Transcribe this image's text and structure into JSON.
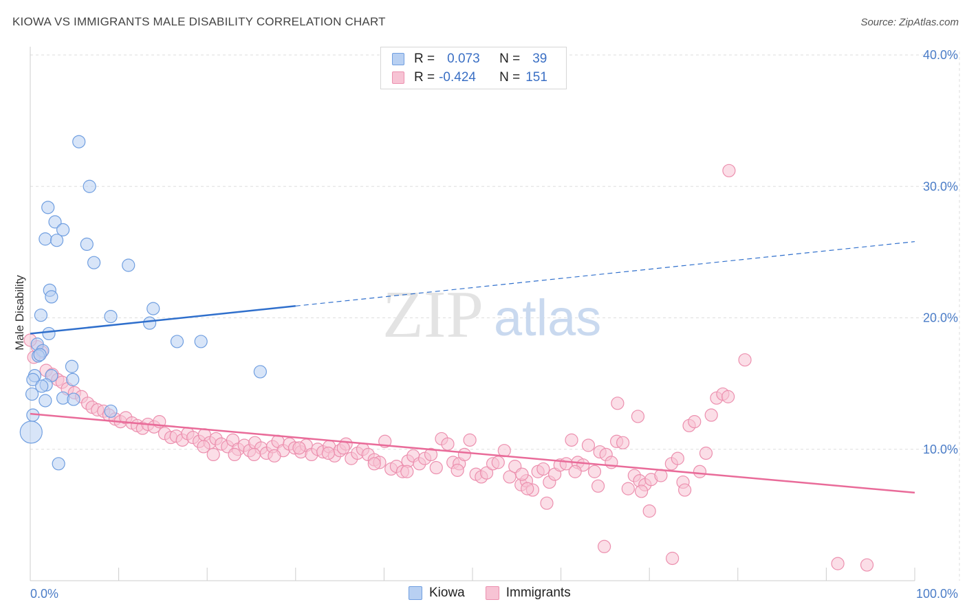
{
  "header": {
    "title": "KIOWA VS IMMIGRANTS MALE DISABILITY CORRELATION CHART",
    "source": "Source: ZipAtlas.com"
  },
  "watermark": {
    "zip": "ZIP",
    "atlas": "atlas"
  },
  "legend": {
    "rows": [
      {
        "r_label": "R =",
        "r_value": "0.073",
        "n_label": "N =",
        "n_value": "39"
      },
      {
        "r_label": "R =",
        "r_value": "-0.424",
        "n_label": "N =",
        "n_value": "151"
      }
    ],
    "series": [
      "Kiowa",
      "Immigrants"
    ]
  },
  "colors": {
    "kiowa_fill": "#b8d0f2",
    "kiowa_stroke": "#6f9ee0",
    "kiowa_line": "#2f6fcc",
    "imm_fill": "#f7c3d4",
    "imm_stroke": "#ec8fae",
    "imm_line": "#e96b99",
    "axis_text": "#4a7cc7",
    "grid": "#dddddd"
  },
  "chart_data": {
    "type": "scatter",
    "title": "KIOWA VS IMMIGRANTS MALE DISABILITY CORRELATION CHART",
    "xlabel": "",
    "ylabel": "Male Disability",
    "xlim": [
      0,
      100
    ],
    "ylim": [
      0,
      40
    ],
    "x_tick_labels": [
      "0.0%",
      "100.0%"
    ],
    "y_ticks": [
      10,
      20,
      30,
      40
    ],
    "y_tick_labels": [
      "10.0%",
      "20.0%",
      "30.0%",
      "40.0%"
    ],
    "grid": true,
    "series": [
      {
        "name": "Kiowa",
        "r": 0.073,
        "n": 39,
        "trend": {
          "x0": 0,
          "y0": 18.8,
          "x1": 30,
          "y1": 20.9,
          "dash_to_x": 100,
          "dash_to_y": 25.8
        },
        "points": [
          [
            5.5,
            33.4
          ],
          [
            6.7,
            30.0
          ],
          [
            2.0,
            28.4
          ],
          [
            2.8,
            27.3
          ],
          [
            3.7,
            26.7
          ],
          [
            1.7,
            26.0
          ],
          [
            3.0,
            25.9
          ],
          [
            6.4,
            25.6
          ],
          [
            7.2,
            24.2
          ],
          [
            11.1,
            24.0
          ],
          [
            2.2,
            22.1
          ],
          [
            2.4,
            21.6
          ],
          [
            13.9,
            20.7
          ],
          [
            1.2,
            20.2
          ],
          [
            9.1,
            20.1
          ],
          [
            13.5,
            19.6
          ],
          [
            2.1,
            18.8
          ],
          [
            0.8,
            18.0
          ],
          [
            16.6,
            18.2
          ],
          [
            19.3,
            18.2
          ],
          [
            1.4,
            17.5
          ],
          [
            0.9,
            17.1
          ],
          [
            1.1,
            17.2
          ],
          [
            4.7,
            16.3
          ],
          [
            26.0,
            15.9
          ],
          [
            0.5,
            15.6
          ],
          [
            2.4,
            15.6
          ],
          [
            0.3,
            15.3
          ],
          [
            4.8,
            15.3
          ],
          [
            1.8,
            14.9
          ],
          [
            1.3,
            14.8
          ],
          [
            0.2,
            14.2
          ],
          [
            1.7,
            13.7
          ],
          [
            3.7,
            13.9
          ],
          [
            4.9,
            13.8
          ],
          [
            9.1,
            12.9
          ],
          [
            0.1,
            11.3
          ],
          [
            3.2,
            8.9
          ],
          [
            0.3,
            12.6
          ]
        ]
      },
      {
        "name": "Immigrants",
        "r": -0.424,
        "n": 151,
        "trend": {
          "x0": 0,
          "y0": 12.7,
          "x1": 100,
          "y1": 6.7
        },
        "points": [
          [
            79.0,
            31.2
          ],
          [
            80.8,
            16.8
          ],
          [
            0.8,
            17.8
          ],
          [
            1.3,
            17.4
          ],
          [
            1.8,
            16.0
          ],
          [
            2.5,
            15.7
          ],
          [
            3.1,
            15.3
          ],
          [
            3.6,
            15.1
          ],
          [
            4.2,
            14.6
          ],
          [
            5.0,
            14.3
          ],
          [
            5.8,
            14.0
          ],
          [
            6.5,
            13.5
          ],
          [
            7.0,
            13.2
          ],
          [
            7.6,
            13.0
          ],
          [
            8.3,
            12.9
          ],
          [
            8.9,
            12.6
          ],
          [
            9.6,
            12.3
          ],
          [
            10.2,
            12.1
          ],
          [
            10.8,
            12.4
          ],
          [
            11.5,
            12.0
          ],
          [
            12.1,
            11.8
          ],
          [
            12.7,
            11.6
          ],
          [
            13.3,
            11.9
          ],
          [
            14.0,
            11.7
          ],
          [
            14.6,
            12.1
          ],
          [
            15.2,
            11.2
          ],
          [
            15.9,
            10.9
          ],
          [
            16.5,
            11.0
          ],
          [
            17.2,
            10.7
          ],
          [
            17.8,
            11.2
          ],
          [
            18.4,
            10.9
          ],
          [
            19.1,
            10.6
          ],
          [
            19.7,
            11.1
          ],
          [
            20.3,
            10.5
          ],
          [
            21.0,
            10.8
          ],
          [
            21.6,
            10.4
          ],
          [
            22.3,
            10.2
          ],
          [
            22.9,
            10.7
          ],
          [
            23.5,
            10.0
          ],
          [
            24.2,
            10.3
          ],
          [
            24.8,
            9.9
          ],
          [
            25.4,
            10.5
          ],
          [
            26.1,
            10.1
          ],
          [
            26.7,
            9.7
          ],
          [
            27.4,
            10.2
          ],
          [
            28.0,
            10.6
          ],
          [
            28.6,
            9.9
          ],
          [
            29.3,
            10.4
          ],
          [
            29.9,
            10.1
          ],
          [
            30.6,
            9.8
          ],
          [
            31.2,
            10.3
          ],
          [
            31.8,
            9.6
          ],
          [
            32.5,
            10.0
          ],
          [
            33.1,
            9.8
          ],
          [
            33.8,
            10.2
          ],
          [
            34.4,
            9.5
          ],
          [
            35.0,
            9.9
          ],
          [
            35.7,
            10.4
          ],
          [
            36.3,
            9.3
          ],
          [
            37.0,
            9.7
          ],
          [
            37.6,
            10.0
          ],
          [
            38.2,
            9.6
          ],
          [
            38.9,
            9.2
          ],
          [
            39.5,
            9.0
          ],
          [
            40.1,
            10.6
          ],
          [
            40.8,
            8.5
          ],
          [
            41.4,
            8.7
          ],
          [
            42.1,
            8.3
          ],
          [
            42.7,
            9.1
          ],
          [
            43.3,
            9.5
          ],
          [
            44.0,
            8.9
          ],
          [
            44.6,
            9.3
          ],
          [
            45.3,
            9.6
          ],
          [
            45.9,
            8.6
          ],
          [
            46.5,
            10.8
          ],
          [
            47.2,
            10.4
          ],
          [
            47.8,
            9.0
          ],
          [
            48.5,
            8.9
          ],
          [
            49.1,
            9.6
          ],
          [
            49.7,
            10.7
          ],
          [
            50.4,
            8.1
          ],
          [
            51.0,
            7.9
          ],
          [
            51.6,
            8.2
          ],
          [
            52.3,
            8.9
          ],
          [
            52.9,
            9.0
          ],
          [
            53.6,
            9.9
          ],
          [
            54.2,
            7.9
          ],
          [
            54.8,
            8.7
          ],
          [
            55.5,
            7.3
          ],
          [
            56.1,
            7.6
          ],
          [
            56.8,
            6.9
          ],
          [
            57.4,
            8.3
          ],
          [
            58.0,
            8.5
          ],
          [
            58.7,
            7.5
          ],
          [
            59.3,
            8.1
          ],
          [
            59.9,
            8.8
          ],
          [
            60.6,
            8.9
          ],
          [
            61.2,
            10.7
          ],
          [
            61.9,
            9.0
          ],
          [
            62.5,
            8.8
          ],
          [
            63.1,
            10.3
          ],
          [
            63.8,
            8.3
          ],
          [
            64.4,
            9.8
          ],
          [
            65.1,
            9.6
          ],
          [
            65.7,
            9.0
          ],
          [
            66.3,
            10.6
          ],
          [
            67.0,
            10.5
          ],
          [
            67.6,
            7.0
          ],
          [
            68.3,
            8.0
          ],
          [
            68.9,
            7.6
          ],
          [
            69.5,
            7.3
          ],
          [
            70.2,
            7.7
          ],
          [
            66.4,
            13.5
          ],
          [
            68.7,
            12.5
          ],
          [
            71.3,
            8.0
          ],
          [
            72.5,
            8.9
          ],
          [
            73.2,
            9.3
          ],
          [
            73.8,
            7.5
          ],
          [
            74.5,
            11.8
          ],
          [
            75.1,
            12.1
          ],
          [
            75.7,
            8.3
          ],
          [
            76.4,
            9.7
          ],
          [
            77.0,
            12.6
          ],
          [
            77.6,
            13.9
          ],
          [
            78.3,
            14.2
          ],
          [
            78.9,
            14.0
          ],
          [
            74.0,
            6.9
          ],
          [
            64.9,
            2.6
          ],
          [
            69.1,
            6.8
          ],
          [
            58.4,
            5.9
          ],
          [
            64.2,
            7.2
          ],
          [
            70.0,
            5.3
          ],
          [
            72.6,
            1.7
          ],
          [
            56.2,
            7.0
          ],
          [
            48.3,
            8.4
          ],
          [
            42.6,
            8.3
          ],
          [
            38.9,
            8.9
          ],
          [
            35.4,
            10.1
          ],
          [
            33.7,
            9.7
          ],
          [
            30.4,
            10.1
          ],
          [
            27.6,
            9.5
          ],
          [
            25.3,
            9.6
          ],
          [
            23.1,
            9.6
          ],
          [
            20.7,
            9.6
          ],
          [
            19.6,
            10.2
          ],
          [
            91.3,
            1.3
          ],
          [
            94.6,
            1.2
          ],
          [
            55.6,
            8.1
          ],
          [
            61.6,
            8.3
          ],
          [
            0.0,
            18.3
          ],
          [
            0.4,
            17.0
          ]
        ]
      }
    ]
  }
}
